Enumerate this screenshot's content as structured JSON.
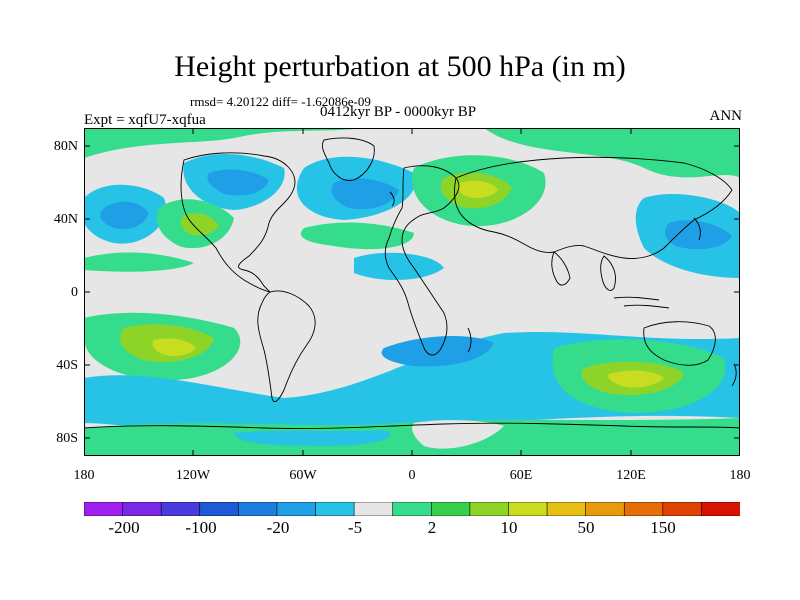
{
  "title": "Height perturbation at 500 hPa (in m)",
  "stats": "rmsd= 4.20122 diff= -1.62086e-09",
  "period": "0412kyr BP - 0000kyr BP",
  "experiment": "Expt = xqfU7-xqfua",
  "season": "ANN",
  "lat_labels": [
    "80N",
    "40N",
    "0",
    "40S",
    "80S"
  ],
  "lon_labels": [
    "180",
    "120W",
    "60W",
    "0",
    "60E",
    "120E",
    "180"
  ],
  "colorbar": {
    "labels": [
      "-200",
      "-100",
      "-20",
      "-5",
      "2",
      "10",
      "50",
      "150"
    ],
    "colors": [
      "#a020f0",
      "#7a28e6",
      "#4a3bdc",
      "#1e5ad6",
      "#1e7de0",
      "#1fa0e6",
      "#27c3e6",
      "#e6e6e6",
      "#35dc8c",
      "#38d04a",
      "#8ed428",
      "#c8dc20",
      "#e6c014",
      "#e69a0c",
      "#e66e08",
      "#e04204",
      "#d81400"
    ]
  },
  "legend_colors": {
    "neg_strong": "#1e5ad6",
    "neg_mid": "#1e7de0",
    "neg_weak": "#27c3e6",
    "neutral": "#e6e6e6",
    "pos_weak": "#35dc8c",
    "pos_mid": "#38d04a",
    "pos_strong": "#c8dc20"
  }
}
